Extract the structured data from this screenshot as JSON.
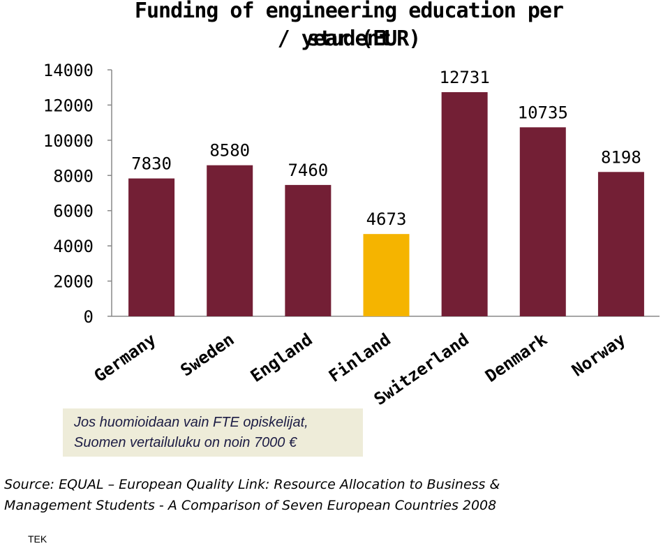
{
  "chart_data": {
    "type": "bar",
    "title_lines": [
      "Funding of engineering education per student",
      "/ year (EUR)"
    ],
    "categories": [
      "Germany",
      "Sweden",
      "England",
      "Finland",
      "Switzerland",
      "Denmark",
      "Norway"
    ],
    "values": [
      7830,
      8580,
      7460,
      4673,
      12731,
      10735,
      8198
    ],
    "data_labels": [
      "7830",
      "8580",
      "7460",
      "4673",
      "12731",
      "10735",
      "8198"
    ],
    "highlight_category": "Finland",
    "yticks": [
      "0",
      "2000",
      "4000",
      "6000",
      "8000",
      "10000",
      "12000",
      "14000"
    ],
    "ylim": [
      0,
      14000
    ],
    "grid": false,
    "colors": {
      "bar": "#731f35",
      "highlight": "#f5b400"
    }
  },
  "note": {
    "lines": [
      "Jos huomioidaan vain FTE opiskelijat,",
      "Suomen vertailuluku on noin 7000 €"
    ]
  },
  "source": {
    "lines": [
      "Source: EQUAL – European Quality Link: Resource Allocation to Business &",
      "Management Students - A Comparison of Seven European Countries 2008"
    ]
  },
  "footer": {
    "text": "TEK"
  }
}
